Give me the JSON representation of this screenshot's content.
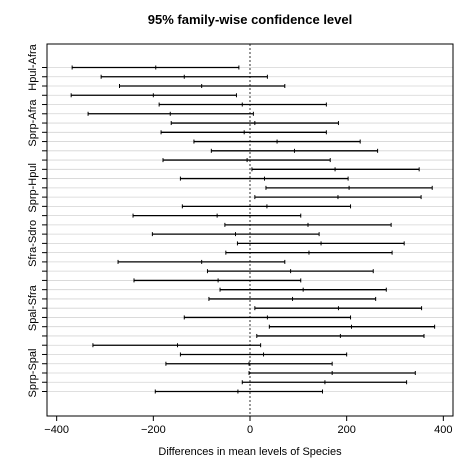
{
  "chart_data": {
    "type": "interval",
    "title": "95% family-wise confidence level",
    "xlabel": "Differences in mean levels of Species",
    "ylabel": "",
    "xlim": [
      -420,
      420
    ],
    "xticks": [
      -400,
      -200,
      0,
      200,
      400
    ],
    "xtick_labels": [
      "−400",
      "−200",
      "0",
      "200",
      "400"
    ],
    "reference_line": 0,
    "grid": "horizontal",
    "comparisons": [
      {
        "label": "Hpul-Afra",
        "lwr": -368,
        "center": -195,
        "upr": -23,
        "show_label": true
      },
      {
        "label": "",
        "lwr": -308,
        "center": -136,
        "upr": 36,
        "show_label": false
      },
      {
        "label": "",
        "lwr": -270,
        "center": -100,
        "upr": 72,
        "show_label": false
      },
      {
        "label": "",
        "lwr": -370,
        "center": -200,
        "upr": -28,
        "show_label": false
      },
      {
        "label": "",
        "lwr": -188,
        "center": -16,
        "upr": 158,
        "show_label": false
      },
      {
        "label": "",
        "lwr": -335,
        "center": -165,
        "upr": 7,
        "show_label": false
      },
      {
        "label": "Sprp-Afra",
        "lwr": -163,
        "center": 10,
        "upr": 183,
        "show_label": true
      },
      {
        "label": "",
        "lwr": -184,
        "center": -12,
        "upr": 158,
        "show_label": false
      },
      {
        "label": "",
        "lwr": -116,
        "center": 56,
        "upr": 228,
        "show_label": false
      },
      {
        "label": "",
        "lwr": -80,
        "center": 92,
        "upr": 264,
        "show_label": false
      },
      {
        "label": "",
        "lwr": -180,
        "center": -6,
        "upr": 166,
        "show_label": false
      },
      {
        "label": "",
        "lwr": 4,
        "center": 176,
        "upr": 350,
        "show_label": false
      },
      {
        "label": "",
        "lwr": -144,
        "center": 30,
        "upr": 203,
        "show_label": false
      },
      {
        "label": "Sprp-Hpul",
        "lwr": 33,
        "center": 205,
        "upr": 377,
        "show_label": true
      },
      {
        "label": "",
        "lwr": 10,
        "center": 182,
        "upr": 354,
        "show_label": false
      },
      {
        "label": "",
        "lwr": -140,
        "center": 35,
        "upr": 208,
        "show_label": false
      },
      {
        "label": "",
        "lwr": -242,
        "center": -68,
        "upr": 105,
        "show_label": false
      },
      {
        "label": "",
        "lwr": -52,
        "center": 120,
        "upr": 292,
        "show_label": false
      },
      {
        "label": "",
        "lwr": -202,
        "center": -30,
        "upr": 143,
        "show_label": false
      },
      {
        "label": "Sfra-Sdro",
        "lwr": -26,
        "center": 147,
        "upr": 319,
        "show_label": true
      },
      {
        "label": "",
        "lwr": -50,
        "center": 122,
        "upr": 294,
        "show_label": false
      },
      {
        "label": "",
        "lwr": -273,
        "center": -100,
        "upr": 72,
        "show_label": false
      },
      {
        "label": "",
        "lwr": -88,
        "center": 84,
        "upr": 255,
        "show_label": false
      },
      {
        "label": "",
        "lwr": -240,
        "center": -66,
        "upr": 105,
        "show_label": false
      },
      {
        "label": "",
        "lwr": -62,
        "center": 110,
        "upr": 282,
        "show_label": false
      },
      {
        "label": "",
        "lwr": -85,
        "center": 88,
        "upr": 260,
        "show_label": false
      },
      {
        "label": "Spal-Sfra",
        "lwr": 10,
        "center": 183,
        "upr": 355,
        "show_label": true
      },
      {
        "label": "",
        "lwr": -136,
        "center": 36,
        "upr": 208,
        "show_label": false
      },
      {
        "label": "",
        "lwr": 40,
        "center": 210,
        "upr": 382,
        "show_label": false
      },
      {
        "label": "",
        "lwr": 14,
        "center": 187,
        "upr": 360,
        "show_label": false
      },
      {
        "label": "",
        "lwr": -325,
        "center": -150,
        "upr": 22,
        "show_label": false
      },
      {
        "label": "",
        "lwr": -144,
        "center": 28,
        "upr": 200,
        "show_label": false
      },
      {
        "label": "",
        "lwr": -174,
        "center": -2,
        "upr": 170,
        "show_label": false
      },
      {
        "label": "Sprp-Spal",
        "lwr": -2,
        "center": 170,
        "upr": 342,
        "show_label": true
      },
      {
        "label": "",
        "lwr": -16,
        "center": 155,
        "upr": 324,
        "show_label": false
      },
      {
        "label": "",
        "lwr": -196,
        "center": -25,
        "upr": 150,
        "show_label": false
      }
    ]
  }
}
